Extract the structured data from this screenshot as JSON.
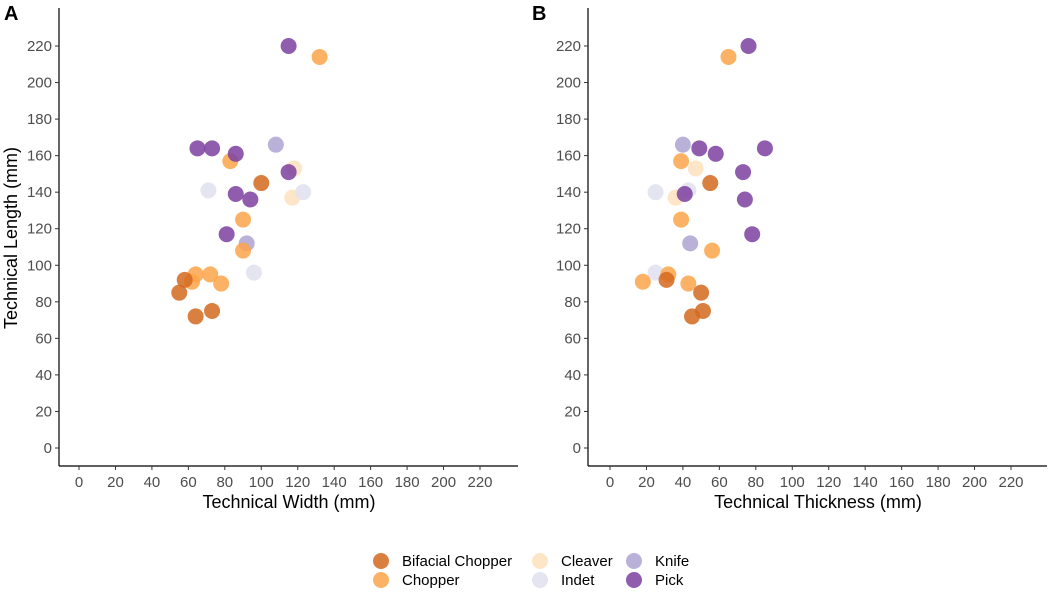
{
  "chart_data": [
    {
      "type": "scatter",
      "panel_label": "A",
      "xlabel": "Technical Width (mm)",
      "ylabel": "Technical Length (mm)",
      "xlim": [
        -10,
        240
      ],
      "ylim": [
        -10,
        240
      ],
      "x_ticks": [
        0,
        20,
        40,
        60,
        80,
        100,
        120,
        140,
        160,
        180,
        200,
        220
      ],
      "y_ticks": [
        0,
        20,
        40,
        60,
        80,
        100,
        120,
        140,
        160,
        180,
        200,
        220
      ],
      "grid": false,
      "points": [
        {
          "x": 118,
          "y": 153,
          "cat": "Cleaver"
        },
        {
          "x": 117,
          "y": 137,
          "cat": "Cleaver"
        },
        {
          "x": 71,
          "y": 141,
          "cat": "Indet"
        },
        {
          "x": 123,
          "y": 140,
          "cat": "Indet"
        },
        {
          "x": 96,
          "y": 96,
          "cat": "Indet"
        },
        {
          "x": 108,
          "y": 166,
          "cat": "Knife"
        },
        {
          "x": 92,
          "y": 112,
          "cat": "Knife"
        },
        {
          "x": 132,
          "y": 214,
          "cat": "Chopper"
        },
        {
          "x": 83,
          "y": 157,
          "cat": "Chopper"
        },
        {
          "x": 90,
          "y": 125,
          "cat": "Chopper"
        },
        {
          "x": 90,
          "y": 108,
          "cat": "Chopper"
        },
        {
          "x": 64,
          "y": 95,
          "cat": "Chopper"
        },
        {
          "x": 72,
          "y": 95,
          "cat": "Chopper"
        },
        {
          "x": 62,
          "y": 91,
          "cat": "Chopper"
        },
        {
          "x": 78,
          "y": 90,
          "cat": "Chopper"
        },
        {
          "x": 100,
          "y": 145,
          "cat": "Bifacial Chopper"
        },
        {
          "x": 58,
          "y": 92,
          "cat": "Bifacial Chopper"
        },
        {
          "x": 55,
          "y": 85,
          "cat": "Bifacial Chopper"
        },
        {
          "x": 73,
          "y": 75,
          "cat": "Bifacial Chopper"
        },
        {
          "x": 64,
          "y": 72,
          "cat": "Bifacial Chopper"
        },
        {
          "x": 115,
          "y": 220,
          "cat": "Pick"
        },
        {
          "x": 65,
          "y": 164,
          "cat": "Pick"
        },
        {
          "x": 73,
          "y": 164,
          "cat": "Pick"
        },
        {
          "x": 86,
          "y": 161,
          "cat": "Pick"
        },
        {
          "x": 115,
          "y": 151,
          "cat": "Pick"
        },
        {
          "x": 86,
          "y": 139,
          "cat": "Pick"
        },
        {
          "x": 94,
          "y": 136,
          "cat": "Pick"
        },
        {
          "x": 81,
          "y": 117,
          "cat": "Pick"
        }
      ]
    },
    {
      "type": "scatter",
      "panel_label": "B",
      "xlabel": "Technical Thickness (mm)",
      "ylabel": "",
      "xlim": [
        -10,
        240
      ],
      "ylim": [
        -10,
        240
      ],
      "x_ticks": [
        0,
        20,
        40,
        60,
        80,
        100,
        120,
        140,
        160,
        180,
        200,
        220
      ],
      "y_ticks": [
        0,
        20,
        40,
        60,
        80,
        100,
        120,
        140,
        160,
        180,
        200,
        220
      ],
      "grid": false,
      "points": [
        {
          "x": 47,
          "y": 153,
          "cat": "Cleaver"
        },
        {
          "x": 36,
          "y": 137,
          "cat": "Cleaver"
        },
        {
          "x": 25,
          "y": 140,
          "cat": "Indet"
        },
        {
          "x": 43,
          "y": 141,
          "cat": "Indet"
        },
        {
          "x": 25,
          "y": 96,
          "cat": "Indet"
        },
        {
          "x": 40,
          "y": 166,
          "cat": "Knife"
        },
        {
          "x": 44,
          "y": 112,
          "cat": "Knife"
        },
        {
          "x": 65,
          "y": 214,
          "cat": "Chopper"
        },
        {
          "x": 39,
          "y": 157,
          "cat": "Chopper"
        },
        {
          "x": 39,
          "y": 125,
          "cat": "Chopper"
        },
        {
          "x": 56,
          "y": 108,
          "cat": "Chopper"
        },
        {
          "x": 32,
          "y": 95,
          "cat": "Chopper"
        },
        {
          "x": 18,
          "y": 91,
          "cat": "Chopper"
        },
        {
          "x": 43,
          "y": 90,
          "cat": "Chopper"
        },
        {
          "x": 55,
          "y": 145,
          "cat": "Bifacial Chopper"
        },
        {
          "x": 31,
          "y": 92,
          "cat": "Bifacial Chopper"
        },
        {
          "x": 50,
          "y": 85,
          "cat": "Bifacial Chopper"
        },
        {
          "x": 51,
          "y": 75,
          "cat": "Bifacial Chopper"
        },
        {
          "x": 45,
          "y": 72,
          "cat": "Bifacial Chopper"
        },
        {
          "x": 76,
          "y": 220,
          "cat": "Pick"
        },
        {
          "x": 49,
          "y": 164,
          "cat": "Pick"
        },
        {
          "x": 85,
          "y": 164,
          "cat": "Pick"
        },
        {
          "x": 58,
          "y": 161,
          "cat": "Pick"
        },
        {
          "x": 73,
          "y": 151,
          "cat": "Pick"
        },
        {
          "x": 41,
          "y": 139,
          "cat": "Pick"
        },
        {
          "x": 74,
          "y": 136,
          "cat": "Pick"
        },
        {
          "x": 78,
          "y": 117,
          "cat": "Pick"
        }
      ]
    }
  ],
  "legend": {
    "position": "bottom",
    "items": [
      {
        "label": "Bifacial Chopper",
        "color": "#d2691e"
      },
      {
        "label": "Chopper",
        "color": "#fca44a"
      },
      {
        "label": "Cleaver",
        "color": "#fde2bd"
      },
      {
        "label": "Indet",
        "color": "#e0e0ef"
      },
      {
        "label": "Knife",
        "color": "#aea3d1"
      },
      {
        "label": "Pick",
        "color": "#7b3fa0"
      }
    ]
  },
  "colors": {
    "Bifacial Chopper": "#d2691e",
    "Chopper": "#fca44a",
    "Cleaver": "#fde2bd",
    "Indet": "#e0e0ef",
    "Knife": "#aea3d1",
    "Pick": "#7b3fa0"
  }
}
